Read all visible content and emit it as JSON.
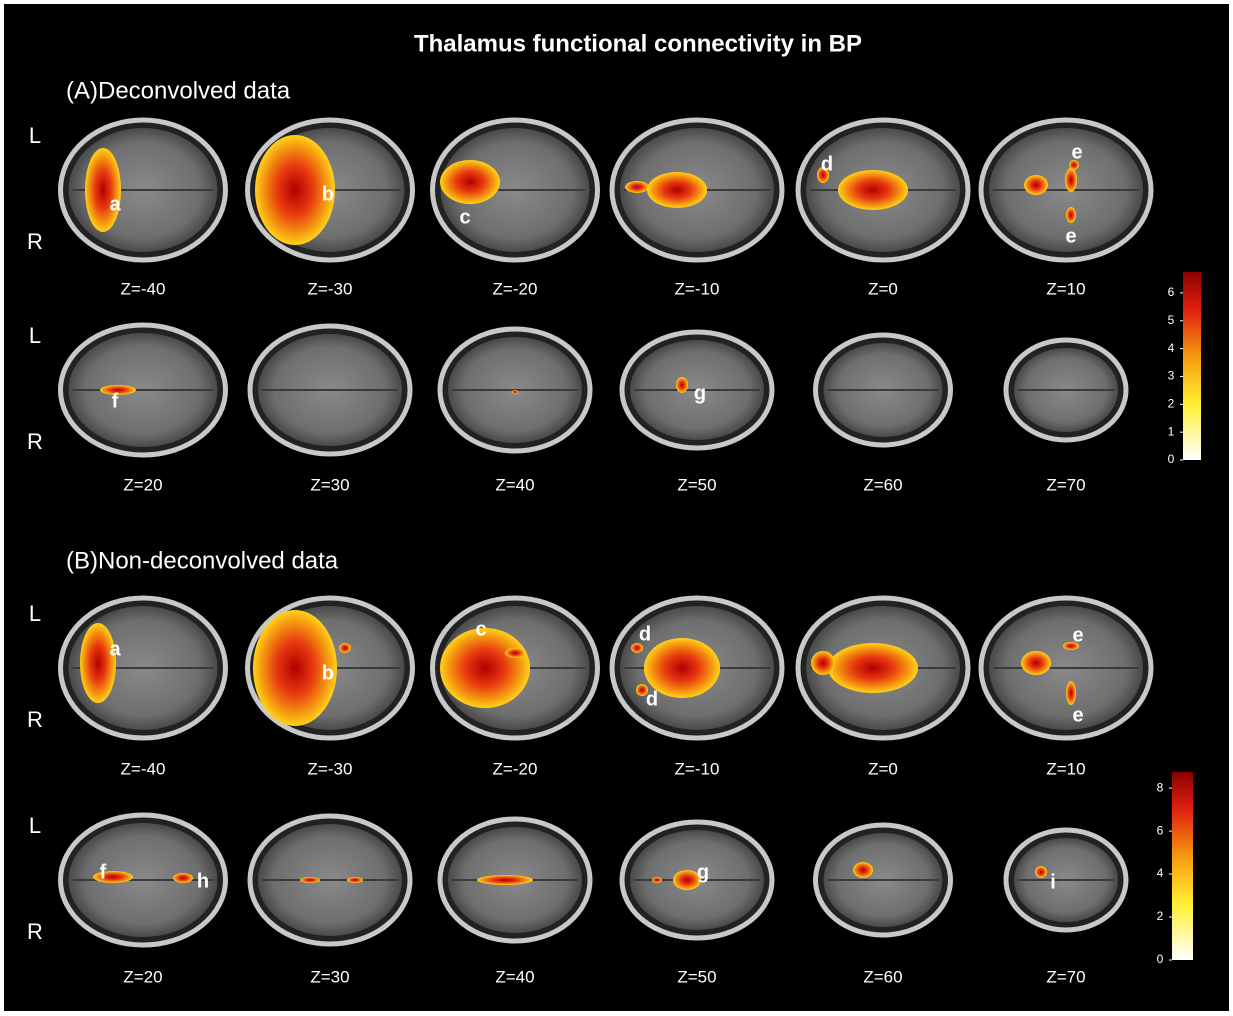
{
  "title": "Thalamus functional connectivity in BP",
  "orientation_labels": [
    "L",
    "R"
  ],
  "panels": [
    {
      "label": "(A)Deconvolved  data",
      "rows": [
        {
          "slices": [
            {
              "z": "Z=-40",
              "annotations": [
                "a"
              ]
            },
            {
              "z": "Z=-30",
              "annotations": [
                "b"
              ]
            },
            {
              "z": "Z=-20",
              "annotations": [
                "c"
              ]
            },
            {
              "z": "Z=-10",
              "annotations": []
            },
            {
              "z": "Z=0",
              "annotations": [
                "d"
              ]
            },
            {
              "z": "Z=10",
              "annotations": [
                "e",
                "e"
              ]
            }
          ]
        },
        {
          "slices": [
            {
              "z": "Z=20",
              "annotations": [
                "f"
              ]
            },
            {
              "z": "Z=30",
              "annotations": []
            },
            {
              "z": "Z=40",
              "annotations": []
            },
            {
              "z": "Z=50",
              "annotations": [
                "g"
              ]
            },
            {
              "z": "Z=60",
              "annotations": []
            },
            {
              "z": "Z=70",
              "annotations": []
            }
          ]
        }
      ],
      "colorbar": {
        "range": [
          0,
          6.75
        ],
        "ticks": [
          0,
          1,
          2,
          3,
          4,
          5,
          6
        ]
      }
    },
    {
      "label": "(B)Non-deconvolved  data",
      "rows": [
        {
          "slices": [
            {
              "z": "Z=-40",
              "annotations": [
                "a"
              ]
            },
            {
              "z": "Z=-30",
              "annotations": [
                "b"
              ]
            },
            {
              "z": "Z=-20",
              "annotations": [
                "c"
              ]
            },
            {
              "z": "Z=-10",
              "annotations": [
                "d",
                "d"
              ]
            },
            {
              "z": "Z=0",
              "annotations": []
            },
            {
              "z": "Z=10",
              "annotations": [
                "e",
                "e"
              ]
            }
          ]
        },
        {
          "slices": [
            {
              "z": "Z=20",
              "annotations": [
                "f",
                "h"
              ]
            },
            {
              "z": "Z=30",
              "annotations": []
            },
            {
              "z": "Z=40",
              "annotations": []
            },
            {
              "z": "Z=50",
              "annotations": [
                "g"
              ]
            },
            {
              "z": "Z=60",
              "annotations": []
            },
            {
              "z": "Z=70",
              "annotations": [
                "i"
              ]
            }
          ]
        }
      ],
      "colorbar": {
        "range": [
          0,
          8.75
        ],
        "ticks": [
          0,
          2,
          4,
          6,
          8
        ]
      }
    }
  ]
}
